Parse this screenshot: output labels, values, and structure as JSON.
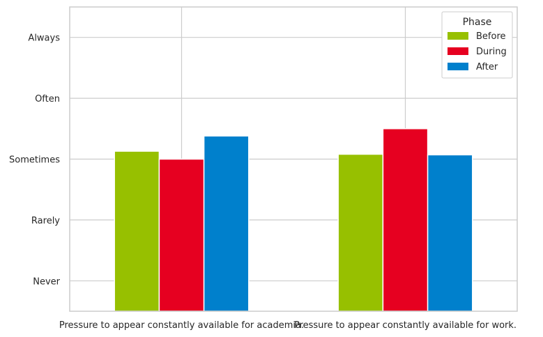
{
  "chart_data": {
    "type": "bar",
    "categories": [
      "Pressure to appear constantly available for academia.",
      "Pressure to appear constantly available for work."
    ],
    "y_tick_labels": [
      "Never",
      "Rarely",
      "Sometimes",
      "Often",
      "Always"
    ],
    "y_tick_values": [
      0,
      1,
      2,
      3,
      4
    ],
    "ylim": [
      -0.5,
      4.5
    ],
    "series": [
      {
        "name": "Before",
        "color": "#97c000",
        "values": [
          2.13,
          2.08
        ]
      },
      {
        "name": "During",
        "color": "#e60020",
        "values": [
          2.0,
          2.5
        ]
      },
      {
        "name": "After",
        "color": "#0080cc",
        "values": [
          2.38,
          2.07
        ]
      }
    ],
    "legend": {
      "title": "Phase",
      "placement": "top-right"
    },
    "grid": true
  }
}
